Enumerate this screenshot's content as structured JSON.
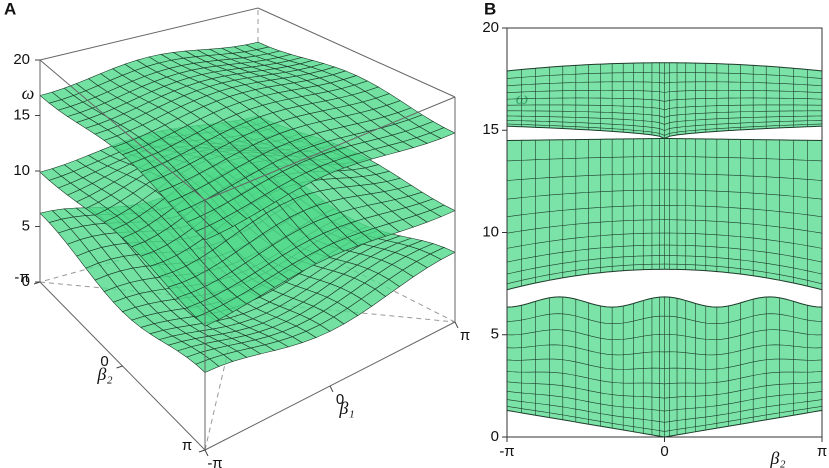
{
  "chart_data": [
    {
      "type": "surface3d",
      "panel_label": "A",
      "zlabel": "ω",
      "xlabel": "β₁",
      "ylabel": "β₂",
      "zlim": [
        0,
        20
      ],
      "zticks": [
        0,
        5,
        10,
        15,
        20
      ],
      "xlim": [
        -3.14159,
        3.14159
      ],
      "xticks": [
        {
          "value": -3.14159,
          "label": "-π"
        },
        0,
        {
          "value": 3.14159,
          "label": "π"
        }
      ],
      "ylim": [
        -3.14159,
        3.14159
      ],
      "yticks": [
        {
          "value": -3.14159,
          "label": "-π"
        },
        0,
        {
          "value": 3.14159,
          "label": "π"
        }
      ],
      "color": "#4fd98a"
    },
    {
      "type": "band",
      "panel_label": "B",
      "ylabel": "ω",
      "xlabel": "β₂",
      "ylim": [
        0,
        20
      ],
      "yticks": [
        0,
        5,
        10,
        15,
        20
      ],
      "xlim": [
        -3.14159,
        3.14159
      ],
      "xticks": [
        {
          "value": -3.14159,
          "label": "-π"
        },
        0,
        {
          "value": 3.14159,
          "label": "π"
        }
      ],
      "color": "#4fd98a"
    }
  ]
}
